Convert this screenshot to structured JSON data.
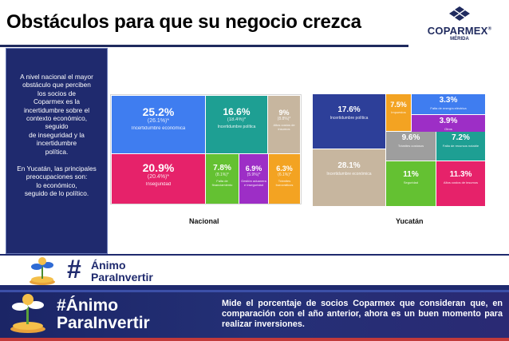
{
  "title": "Obstáculos para que su negocio crezca",
  "logo": {
    "name": "COPARMEX",
    "reg": "®",
    "city": "MÉRIDA"
  },
  "sidebar": {
    "para1": "A nivel nacional el mayor\nobstáculo que perciben\nlos socios de\nCoparmex es la\nincertidumbre sobre el\ncontexto económico,\nseguido\nde inseguridad y la\nincertidumbre\npolítica.",
    "para2": "En Yucatán, las principales\npreocupaciones son:\nlo económico,\nseguido de lo político."
  },
  "charts": {
    "nacional_label": "Nacional",
    "yucatan_label": "Yucatán"
  },
  "chart_data": [
    {
      "type": "treemap",
      "title": "Nacional",
      "items": [
        {
          "label": "Incertidumbre económica",
          "value": 25.2,
          "previous": "(26.1%)*",
          "color": "#3f7df0"
        },
        {
          "label": "Incertidumbre política",
          "value": 16.6,
          "previous": "(18.4%)*",
          "color": "#1e9f93"
        },
        {
          "label": "Altos costos de insumos",
          "value": 9.0,
          "previous": "(8.8%)*",
          "color": "#c7b69f"
        },
        {
          "label": "Inseguridad",
          "value": 20.9,
          "previous": "(20.4%)*",
          "color": "#e6226a"
        },
        {
          "label": "Falta de financiamiento",
          "value": 7.8,
          "previous": "(8.1%)*",
          "color": "#64c132"
        },
        {
          "label": "Gestión aduanera e inseguridad",
          "value": 6.9,
          "previous": "(5.9%)*",
          "color": "#9d2ec6"
        },
        {
          "label": "Trámites burocráticos",
          "value": 6.3,
          "previous": "(6.1%)*",
          "color": "#f3a322"
        }
      ]
    },
    {
      "type": "treemap",
      "title": "Yucatán",
      "items": [
        {
          "label": "Incertidumbre política",
          "value": 17.6,
          "color": "#2d3f99"
        },
        {
          "label": "Impuestos",
          "value": 7.5,
          "color": "#f3a322"
        },
        {
          "label": "Falta de energía eléctrica",
          "value": 3.3,
          "color": "#3f7df0"
        },
        {
          "label": "Otros",
          "value": 3.9,
          "color": "#9d2ec6"
        },
        {
          "label": "Incertidumbre económica",
          "value": 28.1,
          "color": "#c7b69f"
        },
        {
          "label": "Trámites costosos",
          "value": 9.6,
          "color": "#9e9e9e"
        },
        {
          "label": "Falta de recursos notable",
          "value": 7.2,
          "color": "#1e9f93"
        },
        {
          "label": "Seguridad",
          "value": 11.0,
          "color": "#64c132"
        },
        {
          "label": "Altos costos de insumos",
          "value": 11.3,
          "color": "#e6226a"
        }
      ]
    }
  ],
  "banner_small": {
    "hash": "#",
    "line1": "Ánimo",
    "line2": "ParaInvertir"
  },
  "banner_large": {
    "hash": "#",
    "line1": "Ánimo",
    "line2": "ParaInvertir",
    "message": "Mide el porcentaje de socios Coparmex que consideran que, en comparación con el año anterior, ahora es un buen momento para realizar inversiones."
  }
}
